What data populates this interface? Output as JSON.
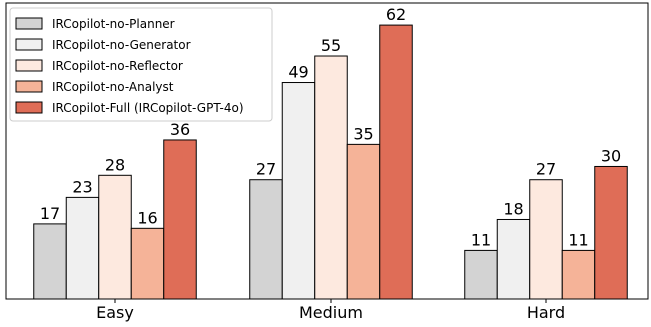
{
  "chart_data": {
    "type": "bar",
    "title": "",
    "xlabel": "",
    "ylabel": "",
    "categories": [
      "Easy",
      "Medium",
      "Hard"
    ],
    "ylim": [
      0,
      67
    ],
    "legend_position": "top-left",
    "grid": false,
    "series": [
      {
        "name": "IRCopilot-no-Planner",
        "color": "#d3d3d3",
        "values": [
          17,
          27,
          11
        ]
      },
      {
        "name": "IRCopilot-no-Generator",
        "color": "#f0f0f0",
        "values": [
          23,
          49,
          18
        ]
      },
      {
        "name": "IRCopilot-no-Reflector",
        "color": "#fde9df",
        "values": [
          28,
          55,
          27
        ]
      },
      {
        "name": "IRCopilot-no-Analyst",
        "color": "#f5b398",
        "values": [
          16,
          35,
          11
        ]
      },
      {
        "name": "IRCopilot-Full (IRCopilot-GPT-4o)",
        "color": "#df6d57",
        "values": [
          36,
          62,
          30
        ]
      }
    ]
  }
}
